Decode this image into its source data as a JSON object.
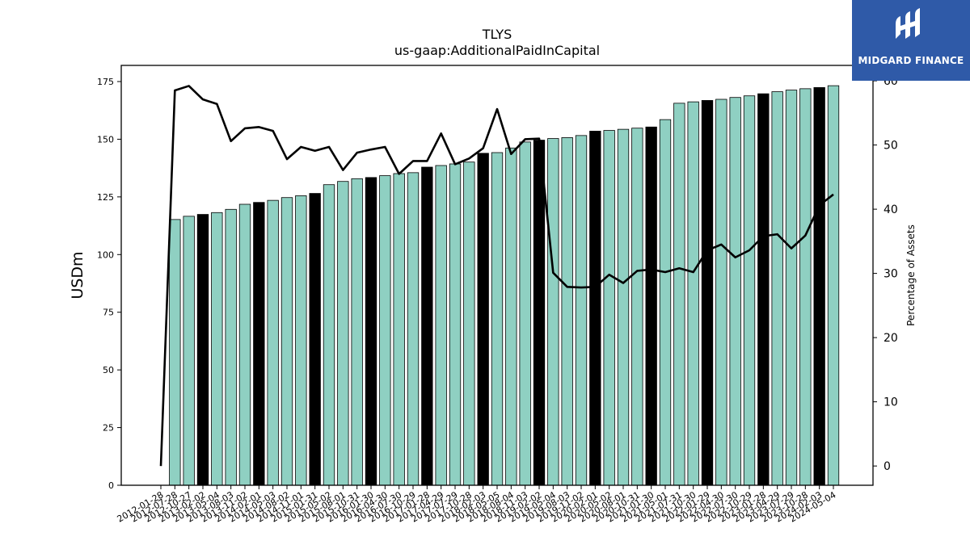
{
  "chart_data": {
    "type": "bar+line",
    "title": "TLYS",
    "subtitle": "us-gaap:AdditionalPaidInCapital",
    "ylabel_left": "USDm",
    "ylabel_right": "Percentage of Assets",
    "ylim_left": [
      0,
      182
    ],
    "ylim_right": [
      -3,
      62.4
    ],
    "yticks_left": [
      0,
      25,
      50,
      75,
      100,
      125,
      150,
      175
    ],
    "yticks_right": [
      0,
      10,
      20,
      30,
      40,
      50,
      60
    ],
    "grid": false,
    "bar_color": "#8fd0c2",
    "highlight_color": "#000000",
    "line_color": "#000000",
    "categories": [
      "2012-01-28",
      "2012-07-28",
      "2012-10-27",
      "2013-02-02",
      "2013-05-04",
      "2013-08-03",
      "2013-11-02",
      "2014-02-01",
      "2014-05-03",
      "2014-08-02",
      "2014-11-01",
      "2015-01-31",
      "2015-05-02",
      "2015-08-01",
      "2015-10-31",
      "2016-01-30",
      "2016-04-30",
      "2016-07-30",
      "2016-10-29",
      "2017-01-28",
      "2017-04-29",
      "2017-07-29",
      "2017-10-28",
      "2018-02-03",
      "2018-05-05",
      "2018-08-04",
      "2018-11-03",
      "2019-02-02",
      "2019-05-04",
      "2019-08-03",
      "2019-11-02",
      "2020-02-01",
      "2020-05-02",
      "2020-08-01",
      "2020-10-31",
      "2021-01-30",
      "2021-05-01",
      "2021-07-31",
      "2021-10-30",
      "2022-01-29",
      "2022-04-30",
      "2022-07-30",
      "2022-10-29",
      "2023-01-28",
      "2023-04-29",
      "2023-07-29",
      "2023-10-28",
      "2024-02-03",
      "2024-05-04"
    ],
    "bars": [
      null,
      115.2,
      116.6,
      117.4,
      118.2,
      119.6,
      121.8,
      122.6,
      123.5,
      124.7,
      125.5,
      126.5,
      130.3,
      131.7,
      132.9,
      133.4,
      134.2,
      135.1,
      135.5,
      137.9,
      138.6,
      139.3,
      140.1,
      143.9,
      144.2,
      146.2,
      148.8,
      149.6,
      150.3,
      150.7,
      151.6,
      153.5,
      153.8,
      154.3,
      154.8,
      155.3,
      158.5,
      165.6,
      166.2,
      166.8,
      167.3,
      168.1,
      168.8,
      169.7,
      170.6,
      171.3,
      171.9,
      172.4,
      173.2
    ],
    "highlighted": [
      false,
      false,
      false,
      true,
      false,
      false,
      false,
      true,
      false,
      false,
      false,
      true,
      false,
      false,
      false,
      true,
      false,
      false,
      false,
      true,
      false,
      false,
      false,
      true,
      false,
      false,
      false,
      true,
      false,
      false,
      false,
      true,
      false,
      false,
      false,
      true,
      false,
      false,
      false,
      true,
      false,
      false,
      false,
      true,
      false,
      false,
      false,
      true,
      false
    ],
    "line": [
      0.0,
      58.5,
      59.2,
      57.1,
      56.4,
      50.6,
      52.6,
      52.8,
      52.2,
      47.8,
      49.7,
      49.1,
      49.7,
      46.1,
      48.8,
      49.3,
      49.7,
      45.5,
      47.5,
      47.5,
      51.8,
      47.0,
      47.9,
      49.5,
      55.6,
      48.6,
      50.9,
      51.0,
      30.1,
      27.9,
      27.8,
      27.9,
      29.8,
      28.5,
      30.4,
      30.6,
      30.2,
      30.8,
      30.2,
      33.6,
      34.5,
      32.5,
      33.6,
      35.8,
      36.1,
      33.9,
      35.9,
      40.6,
      42.3
    ]
  },
  "brand": {
    "name": "MIDGARD FINANCE",
    "bg_color": "#2f5aa8"
  }
}
